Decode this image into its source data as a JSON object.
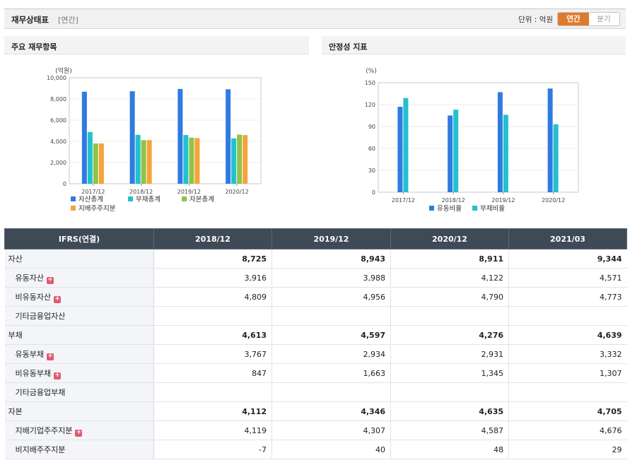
{
  "header": {
    "title": "재무상태표",
    "period_tag": "[연간]",
    "unit_label": "단위 : 억원",
    "toggle_active": "연간",
    "toggle_inactive": "분기"
  },
  "left_panel": {
    "title": "주요 재무항목"
  },
  "right_panel": {
    "title": "안정성 지표"
  },
  "colors": {
    "c1": "#2f7be0",
    "c2": "#22c0d0",
    "c3": "#8dc44a",
    "c4": "#f7a23a"
  },
  "chart_data": [
    {
      "type": "bar",
      "title": "주요 재무항목",
      "ylabel": "(억원)",
      "ylim": [
        0,
        10000
      ],
      "yticks": [
        0,
        2000,
        4000,
        6000,
        8000,
        10000
      ],
      "ytick_labels": [
        "0",
        "2,000",
        "4,000",
        "6,000",
        "8,000",
        "10,000"
      ],
      "categories": [
        "2017/12",
        "2018/12",
        "2019/12",
        "2020/12"
      ],
      "series": [
        {
          "name": "자산총계",
          "color": "#2f7be0",
          "values": [
            8680,
            8725,
            8943,
            8911
          ]
        },
        {
          "name": "부채총계",
          "color": "#22c0d0",
          "values": [
            4880,
            4613,
            4597,
            4276
          ]
        },
        {
          "name": "자본총계",
          "color": "#8dc44a",
          "values": [
            3800,
            4112,
            4346,
            4635
          ]
        },
        {
          "name": "지배주주지분",
          "color": "#f7a23a",
          "values": [
            3800,
            4119,
            4307,
            4587
          ]
        }
      ]
    },
    {
      "type": "bar",
      "title": "안정성 지표",
      "ylabel": "(%)",
      "ylim": [
        0,
        150
      ],
      "yticks": [
        0,
        30,
        60,
        90,
        120,
        150
      ],
      "ytick_labels": [
        "0",
        "30",
        "60",
        "90",
        "120",
        "150"
      ],
      "categories": [
        "2017/12",
        "2018/12",
        "2019/12",
        "2020/12"
      ],
      "series": [
        {
          "name": "유동비율",
          "color": "#2f7be0",
          "values": [
            117,
            105,
            137,
            142
          ]
        },
        {
          "name": "부채비율",
          "color": "#22c0d0",
          "values": [
            129,
            113,
            106,
            93
          ]
        }
      ]
    }
  ],
  "table": {
    "header_label": "IFRS(연결)",
    "periods": [
      "2018/12",
      "2019/12",
      "2020/12",
      "2021/03"
    ],
    "rows": [
      {
        "label": "자산",
        "level": 0,
        "bold": true,
        "plus": false,
        "values": [
          "8,725",
          "8,943",
          "8,911",
          "9,344"
        ]
      },
      {
        "label": "유동자산",
        "level": 1,
        "bold": false,
        "plus": true,
        "values": [
          "3,916",
          "3,988",
          "4,122",
          "4,571"
        ]
      },
      {
        "label": "비유동자산",
        "level": 1,
        "bold": false,
        "plus": true,
        "values": [
          "4,809",
          "4,956",
          "4,790",
          "4,773"
        ]
      },
      {
        "label": "기타금융업자산",
        "level": 1,
        "bold": false,
        "plus": false,
        "values": [
          "",
          "",
          "",
          ""
        ]
      },
      {
        "label": "부채",
        "level": 0,
        "bold": true,
        "plus": false,
        "values": [
          "4,613",
          "4,597",
          "4,276",
          "4,639"
        ]
      },
      {
        "label": "유동부채",
        "level": 1,
        "bold": false,
        "plus": true,
        "values": [
          "3,767",
          "2,934",
          "2,931",
          "3,332"
        ]
      },
      {
        "label": "비유동부채",
        "level": 1,
        "bold": false,
        "plus": true,
        "values": [
          "847",
          "1,663",
          "1,345",
          "1,307"
        ]
      },
      {
        "label": "기타금융업부채",
        "level": 1,
        "bold": false,
        "plus": false,
        "values": [
          "",
          "",
          "",
          ""
        ]
      },
      {
        "label": "자본",
        "level": 0,
        "bold": true,
        "plus": false,
        "values": [
          "4,112",
          "4,346",
          "4,635",
          "4,705"
        ]
      },
      {
        "label": "지배기업주주지분",
        "level": 1,
        "bold": false,
        "plus": true,
        "values": [
          "4,119",
          "4,307",
          "4,587",
          "4,676"
        ]
      },
      {
        "label": "비지배주주지분",
        "level": 1,
        "bold": false,
        "plus": false,
        "values": [
          "-7",
          "40",
          "48",
          "29"
        ]
      }
    ]
  }
}
